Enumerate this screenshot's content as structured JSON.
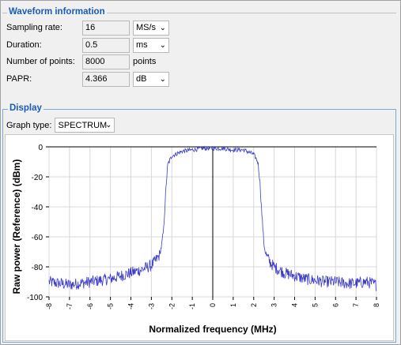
{
  "waveform": {
    "title": "Waveform information",
    "sampling_rate": {
      "label": "Sampling rate:",
      "value": "16",
      "unit": "MS/s"
    },
    "duration": {
      "label": "Duration:",
      "value": "0.5",
      "unit": "ms"
    },
    "num_points": {
      "label": "Number of points:",
      "value": "8000",
      "unit": "points"
    },
    "papr": {
      "label": "PAPR:",
      "value": "4.366",
      "unit": "dB"
    }
  },
  "display": {
    "title": "Display",
    "graph_type": {
      "label": "Graph type:",
      "value": "SPECTRUM"
    }
  },
  "chart_data": {
    "type": "line",
    "title": "",
    "xlabel": "Normalized frequency (MHz)",
    "ylabel": "Raw power (Reference) (dBm)",
    "xlim": [
      -8,
      8
    ],
    "ylim": [
      -100,
      0
    ],
    "x_ticks": [
      -8,
      -7,
      -6,
      -5,
      -4,
      -3,
      -2,
      -1,
      0,
      1,
      2,
      3,
      4,
      5,
      6,
      7,
      8
    ],
    "y_ticks": [
      0,
      -20,
      -40,
      -60,
      -80,
      -100
    ],
    "grid": true,
    "line_color": "#3c3cc8",
    "series": [
      {
        "x": [
          -8,
          -7.5,
          -7,
          -6.5,
          -6,
          -5.5,
          -5,
          -4.5,
          -4,
          -3.5,
          -3,
          -2.8,
          -2.6,
          -2.5,
          -2.4,
          -2.3,
          -2.2,
          -2,
          -1.5,
          -1,
          -0.5,
          0,
          0.5,
          1,
          1.5,
          2,
          2.2,
          2.3,
          2.4,
          2.5,
          2.6,
          2.8,
          3,
          3.5,
          4,
          4.5,
          5,
          5.5,
          6,
          6.5,
          7,
          7.5,
          8
        ],
        "y": [
          -90,
          -91,
          -92,
          -91,
          -90,
          -89,
          -88,
          -86,
          -84,
          -82,
          -79,
          -76,
          -72,
          -66,
          -55,
          -30,
          -12,
          -6,
          -3,
          -2,
          -1,
          -1,
          -1,
          -2,
          -2,
          -5,
          -10,
          -22,
          -45,
          -65,
          -72,
          -77,
          -80,
          -84,
          -86,
          -88,
          -89,
          -90,
          -90,
          -91,
          -91,
          -90,
          -92
        ]
      }
    ]
  }
}
